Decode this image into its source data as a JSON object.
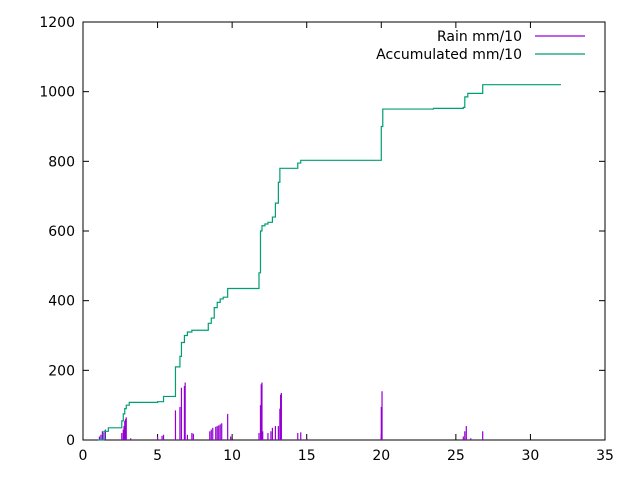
{
  "chart_data": {
    "type": "line",
    "title": "",
    "xlabel": "",
    "ylabel": "",
    "xlim": [
      0,
      35
    ],
    "ylim": [
      0,
      1200
    ],
    "x_ticks": [
      0,
      5,
      10,
      15,
      20,
      25,
      30,
      35
    ],
    "y_ticks": [
      0,
      200,
      400,
      600,
      800,
      1000,
      1200
    ],
    "grid": false,
    "legend": "top-right",
    "series": [
      {
        "name": "Rain mm/10",
        "style": "impulses",
        "color": "#9400d3",
        "x": [
          1.1,
          1.2,
          1.3,
          1.4,
          1.5,
          2.6,
          2.7,
          2.75,
          2.8,
          2.85,
          2.9,
          3.2,
          5.0,
          5.3,
          5.4,
          6.2,
          6.5,
          6.6,
          6.8,
          6.85,
          7.0,
          7.3,
          7.4,
          8.5,
          8.6,
          8.7,
          8.9,
          9.0,
          9.1,
          9.2,
          9.3,
          9.7,
          9.9,
          11.8,
          11.9,
          11.95,
          12.0,
          12.05,
          12.4,
          12.6,
          12.7,
          12.9,
          13.1,
          13.2,
          13.25,
          13.3,
          14.4,
          14.6,
          15.0,
          20.0,
          20.05,
          25.5,
          25.6,
          25.7,
          26.0,
          26.8
        ],
        "values": [
          10,
          15,
          25,
          20,
          30,
          20,
          30,
          40,
          55,
          60,
          65,
          5,
          10,
          12,
          15,
          85,
          95,
          150,
          155,
          165,
          15,
          20,
          18,
          25,
          30,
          35,
          38,
          40,
          42,
          45,
          48,
          75,
          10,
          20,
          100,
          160,
          165,
          25,
          20,
          25,
          35,
          40,
          40,
          90,
          130,
          135,
          20,
          22,
          5,
          95,
          140,
          10,
          25,
          40,
          5,
          25
        ]
      },
      {
        "name": "Accumulated mm/10",
        "style": "steps",
        "color": "#009e73",
        "x": [
          1.0,
          1.4,
          1.7,
          2.6,
          2.7,
          2.8,
          2.9,
          3.1,
          5.0,
          5.4,
          5.9,
          6.2,
          6.5,
          6.6,
          6.8,
          7.0,
          7.3,
          8.4,
          8.6,
          8.8,
          9.0,
          9.2,
          9.4,
          9.7,
          11.6,
          11.8,
          11.9,
          12.0,
          12.2,
          12.4,
          12.7,
          12.9,
          13.1,
          13.2,
          13.3,
          14.4,
          14.6,
          19.9,
          20.0,
          20.1,
          23.5,
          25.5,
          25.6,
          25.8,
          26.8,
          32.0
        ],
        "values": [
          0,
          25,
          35,
          55,
          75,
          90,
          100,
          108,
          110,
          125,
          125,
          210,
          240,
          280,
          300,
          310,
          315,
          335,
          350,
          380,
          395,
          405,
          410,
          435,
          435,
          480,
          600,
          615,
          620,
          625,
          640,
          680,
          740,
          780,
          780,
          795,
          803,
          803,
          900,
          950,
          952,
          955,
          985,
          995,
          1020,
          1022
        ]
      }
    ]
  }
}
